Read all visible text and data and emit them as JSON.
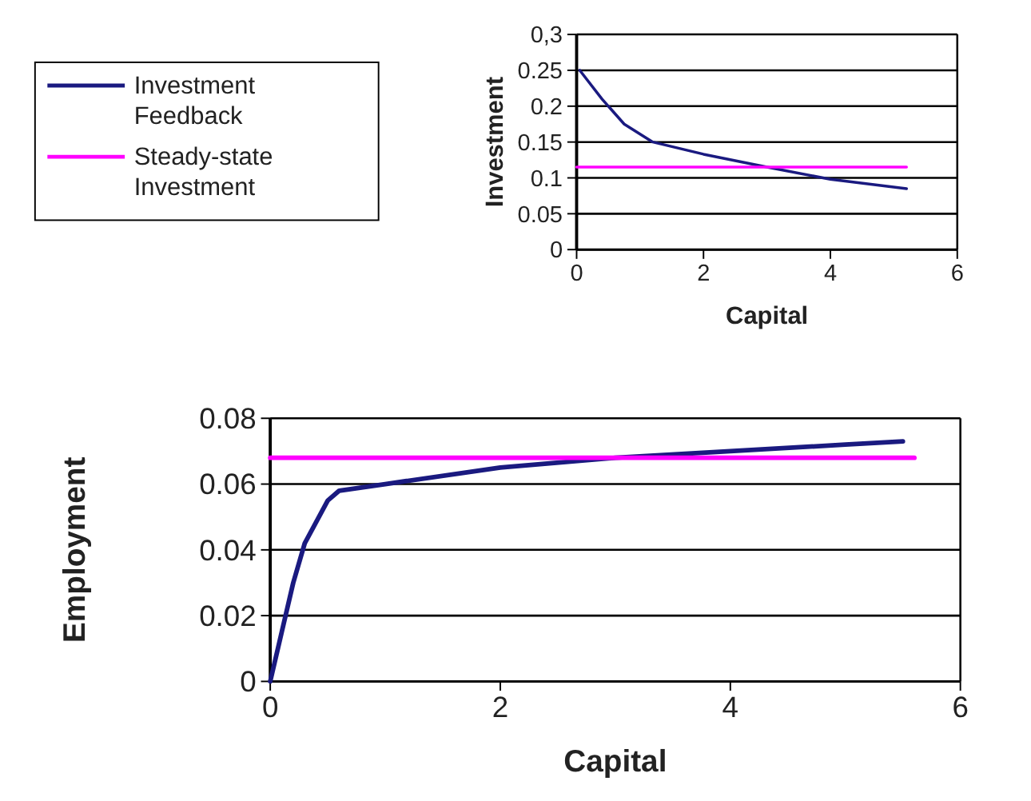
{
  "chart_data": [
    {
      "type": "line",
      "xlabel": "Capital",
      "ylabel": "Investment",
      "xlim": [
        0,
        6
      ],
      "xticks": [
        0,
        2,
        4,
        6
      ],
      "ylim": [
        0,
        0.3
      ],
      "yticks": [
        0,
        0.05,
        0.1,
        0.15,
        0.2,
        0.25,
        {
          "value": 0.3,
          "label": "0,3"
        }
      ],
      "grid": "y",
      "legend": "left",
      "marker": "none",
      "series": [
        {
          "name": "Investment Feedback",
          "color": "#1a1a80",
          "x": [
            0.05,
            0.4,
            0.75,
            1.2,
            2,
            3,
            4,
            5.2
          ],
          "values": [
            0.25,
            0.21,
            0.175,
            0.15,
            0.133,
            0.115,
            0.098,
            0.085
          ]
        },
        {
          "name": "Steady-state Investment",
          "color": "#ff00ff",
          "x": [
            0,
            5.2
          ],
          "values": [
            0.115,
            0.115
          ]
        }
      ]
    },
    {
      "type": "line",
      "xlabel": "Capital",
      "ylabel": "Employment",
      "xlim": [
        0,
        6
      ],
      "xticks": [
        0,
        2,
        4,
        6
      ],
      "ylim": [
        0,
        0.08
      ],
      "yticks": [
        0,
        0.02,
        0.04,
        0.06,
        0.08
      ],
      "grid": "y",
      "marker": "none",
      "series": [
        {
          "color": "#1a1a80",
          "x": [
            0,
            0.1,
            0.2,
            0.3,
            0.5,
            0.6,
            1,
            2,
            3,
            4,
            5,
            5.5
          ],
          "values": [
            0,
            0.015,
            0.03,
            0.042,
            0.055,
            0.058,
            0.06,
            0.065,
            0.068,
            0.07,
            0.072,
            0.073
          ]
        },
        {
          "color": "#ff00ff",
          "x": [
            0,
            5.6
          ],
          "values": [
            0.068,
            0.068
          ]
        }
      ]
    }
  ]
}
